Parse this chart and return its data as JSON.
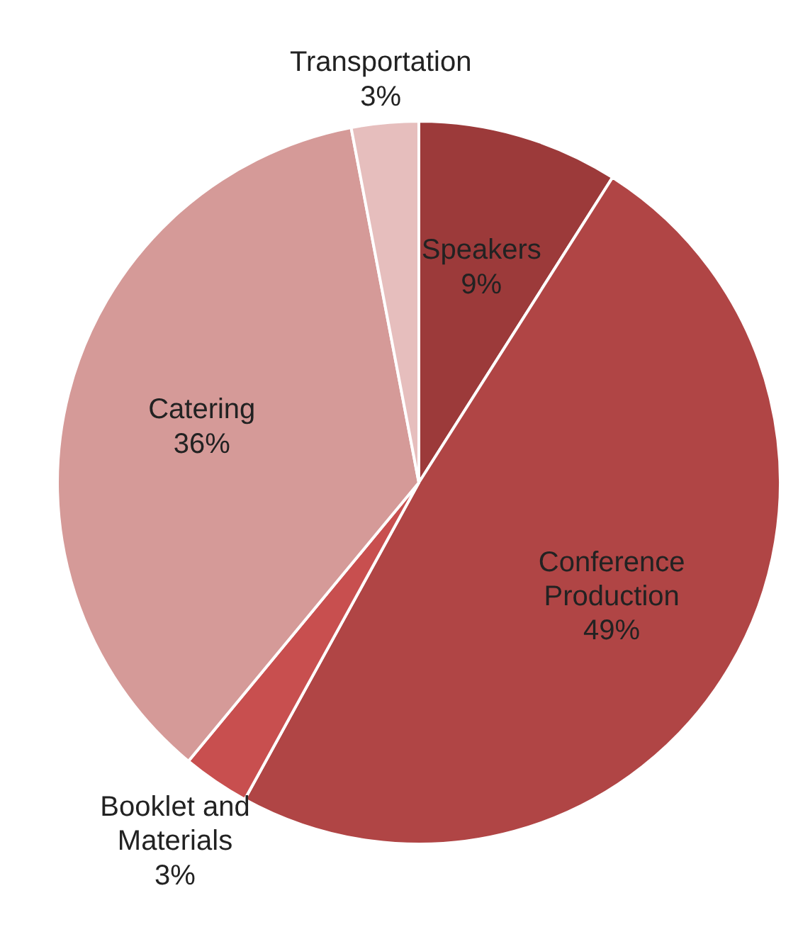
{
  "chart_data": {
    "type": "pie",
    "categories": [
      "Speakers",
      "Conference Production",
      "Booklet and Materials",
      "Catering",
      "Transportation"
    ],
    "values": [
      9,
      49,
      3,
      36,
      3
    ],
    "value_labels": [
      "9%",
      "49%",
      "3%",
      "36%",
      "3%"
    ],
    "colors": [
      "#9c3a3a",
      "#b04545",
      "#c84f4f",
      "#d59a98",
      "#e6bebd"
    ]
  }
}
